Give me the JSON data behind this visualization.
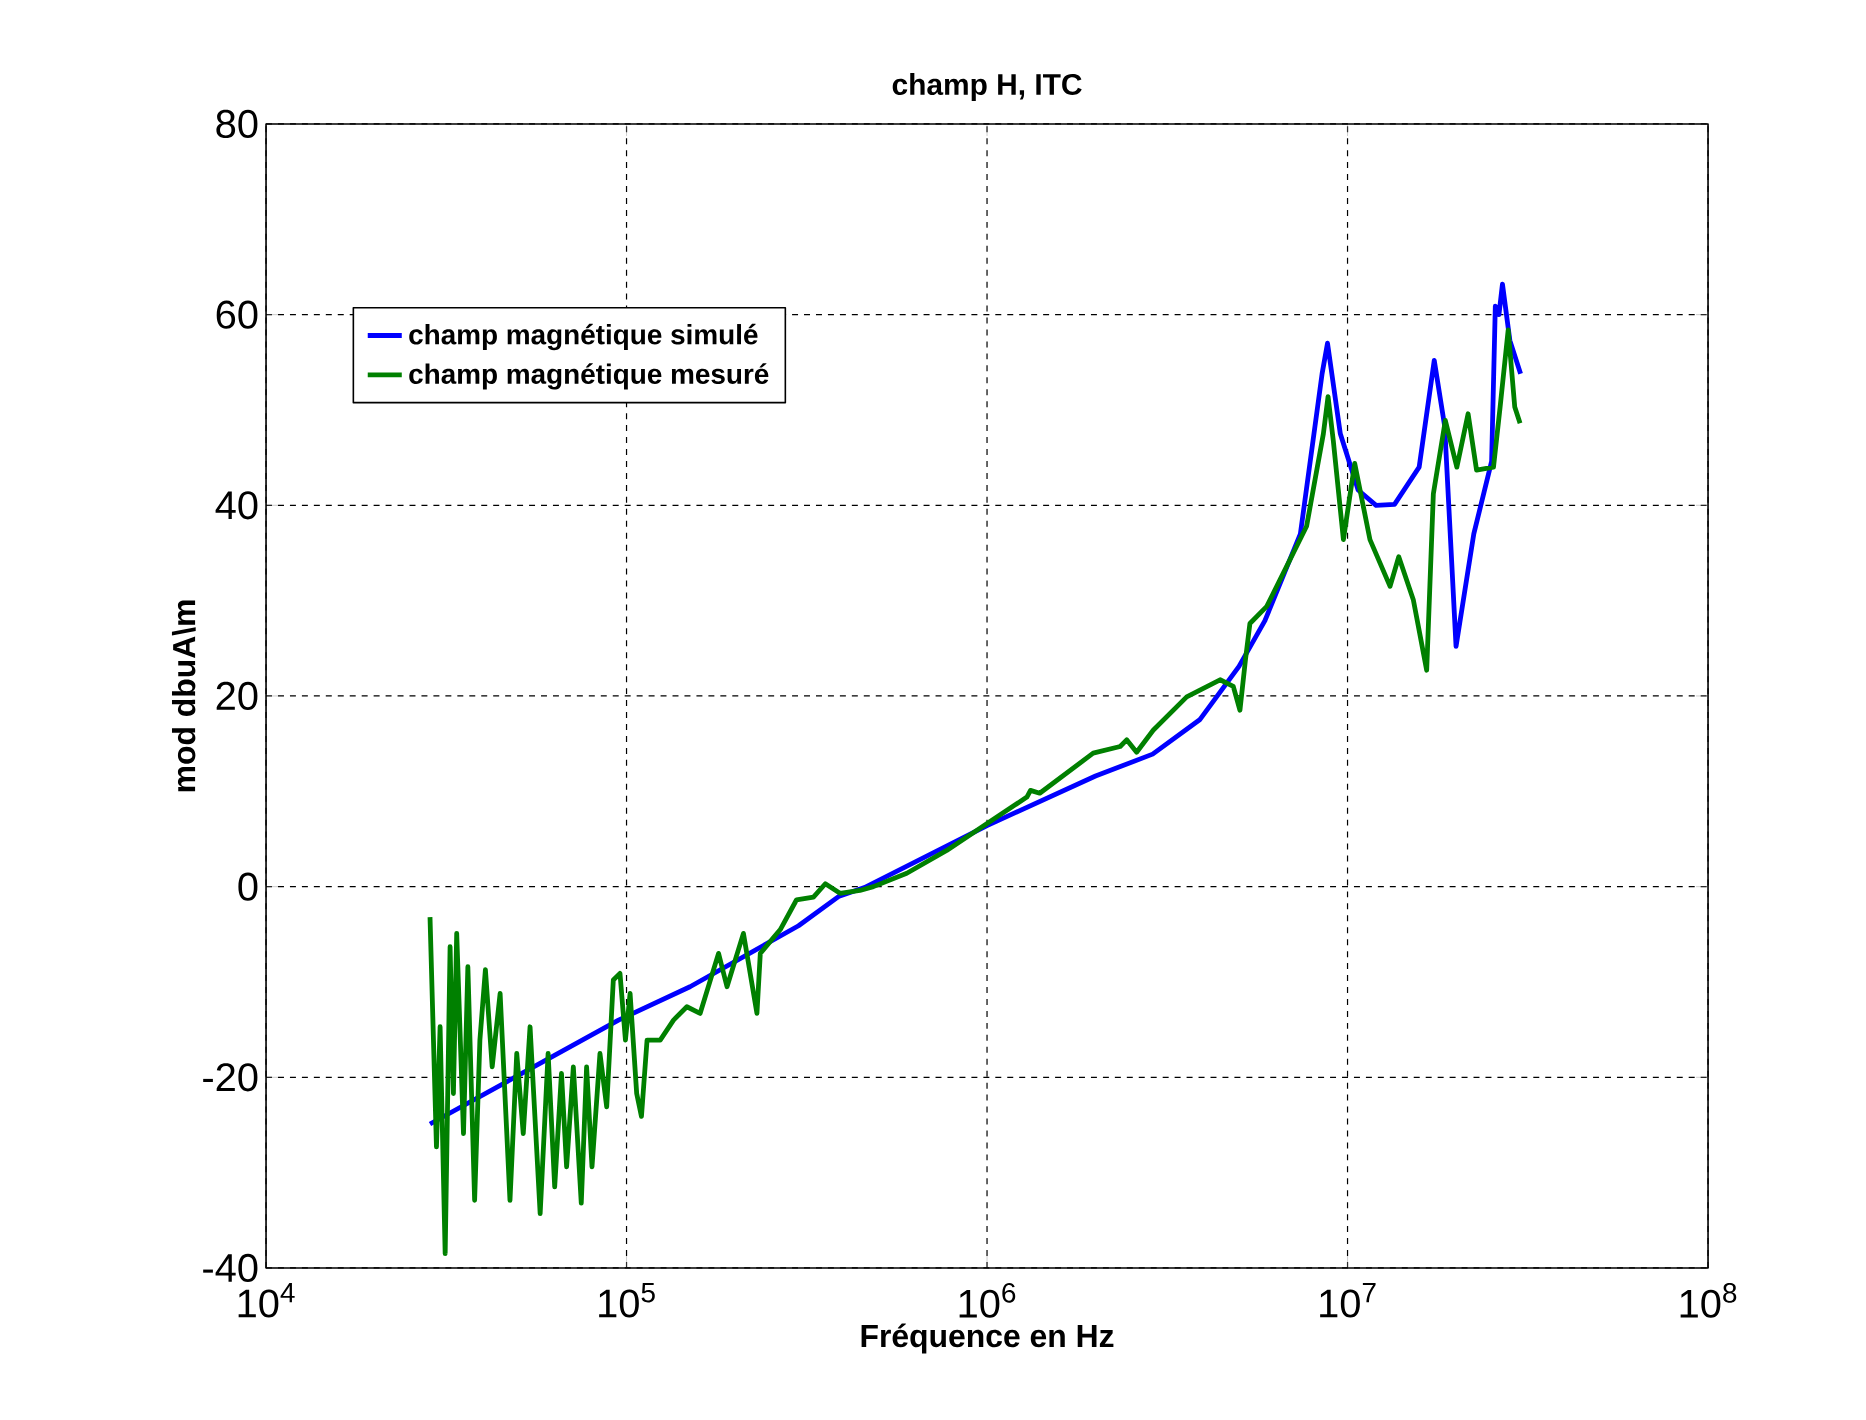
{
  "chart_data": {
    "type": "line",
    "title": "champ H, ITC",
    "xlabel": "Fréquence en Hz",
    "ylabel": "mod dbuA\\m",
    "log": "x",
    "grid": true,
    "legend": "top left",
    "line_style": "solid",
    "marker": "none",
    "xlim": [
      10000,
      100000000
    ],
    "ylim": [
      -40,
      80
    ],
    "xticks": [
      {
        "value": 10000,
        "label": "10$^{4}$"
      },
      {
        "value": 100000,
        "label": "10$^{5}$"
      },
      {
        "value": 1000000,
        "label": "10$^{6}$"
      },
      {
        "value": 10000000,
        "label": "10$^{7}$"
      },
      {
        "value": 100000000,
        "label": "10$^{8}$"
      }
    ],
    "yticks": [
      -40,
      -20,
      0,
      20,
      40,
      60,
      80
    ],
    "series": [
      {
        "name": "champ magnétique simulé",
        "color": "#0000ff",
        "x": [
          28500,
          95000,
          150000,
          300000,
          389000,
          457000,
          1000000,
          2000000,
          2880000,
          3890000,
          5000000,
          5900000,
          7400000,
          8500000,
          8800000,
          9550000,
          10700000,
          12000000,
          13500000,
          15800000,
          17400000,
          18600000,
          20000000,
          22400000,
          25100000,
          25700000,
          26300000,
          26900000,
          28200000,
          30200000
        ],
        "values": [
          -24.9,
          -14.0,
          -10.5,
          -4.1,
          -1.0,
          -0.1,
          6.4,
          11.6,
          13.9,
          17.5,
          23.1,
          27.9,
          37.0,
          53.8,
          57.0,
          47.5,
          41.6,
          40.0,
          40.1,
          44.0,
          55.2,
          48.3,
          25.2,
          37.0,
          44.6,
          60.9,
          60.0,
          63.2,
          57.3,
          53.8
        ]
      },
      {
        "name": "champ magnétique mesuré",
        "color": "#008000",
        "x": [
          28500,
          29700,
          30400,
          31400,
          32400,
          33100,
          33800,
          35300,
          36300,
          37900,
          39200,
          40600,
          42400,
          44600,
          47500,
          49600,
          51700,
          54000,
          57600,
          60600,
          63200,
          66000,
          68200,
          71200,
          74900,
          77500,
          80200,
          84400,
          88100,
          91900,
          95900,
          99300,
          102300,
          106700,
          110000,
          114000,
          124000,
          135000,
          147000,
          160000,
          180000,
          190000,
          211000,
          230000,
          235000,
          267000,
          296000,
          330000,
          356000,
          391000,
          444000,
          484000,
          599000,
          773000,
          998000,
          1290000,
          1320000,
          1400000,
          1970000,
          2340000,
          2440000,
          2600000,
          2890000,
          3580000,
          4430000,
          4820000,
          5030000,
          5210000,
          5360000,
          5970000,
          6500000,
          7700000,
          8570000,
          8830000,
          9130000,
          9740000,
          10470000,
          11540000,
          13120000,
          13870000,
          15220000,
          16580000,
          17300000,
          18680000,
          20100000,
          21600000,
          22800000,
          25400000,
          26500000,
          27900000,
          29100000,
          30100000
        ],
        "values": [
          -3.2,
          -27.3,
          -14.7,
          -38.5,
          -6.3,
          -21.7,
          -4.9,
          -25.9,
          -8.4,
          -32.9,
          -16.1,
          -8.7,
          -18.9,
          -11.2,
          -32.9,
          -17.5,
          -25.9,
          -14.7,
          -34.3,
          -17.5,
          -31.5,
          -19.6,
          -29.4,
          -18.9,
          -33.2,
          -18.9,
          -29.4,
          -17.5,
          -23.1,
          -9.8,
          -9.1,
          -16.1,
          -11.2,
          -21.7,
          -24.1,
          -16.1,
          -16.1,
          -14.0,
          -12.6,
          -13.3,
          -7.0,
          -10.5,
          -4.9,
          -13.3,
          -7.0,
          -4.5,
          -1.4,
          -1.1,
          0.3,
          -0.7,
          -0.4,
          0.0,
          1.4,
          3.8,
          6.6,
          9.4,
          10.1,
          9.8,
          14.0,
          14.7,
          15.4,
          14.1,
          16.4,
          19.9,
          21.7,
          21.0,
          18.5,
          23.8,
          27.6,
          29.4,
          32.2,
          37.8,
          47.5,
          51.4,
          46.8,
          36.4,
          44.4,
          36.4,
          31.5,
          34.6,
          30.1,
          22.7,
          41.2,
          48.9,
          44.0,
          49.6,
          43.7,
          44.0,
          50.3,
          58.4,
          50.3,
          48.6
        ]
      }
    ]
  }
}
